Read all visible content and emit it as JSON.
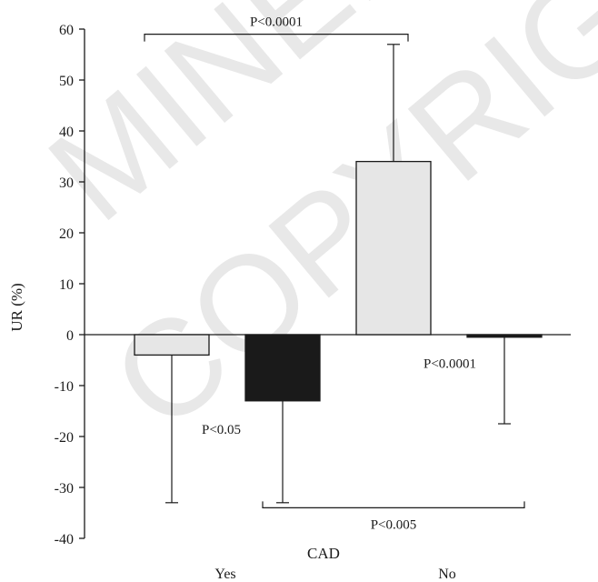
{
  "watermark": {
    "line1": "MINERVA",
    "line2": "COPYRIGHT"
  },
  "chart_data": {
    "type": "bar",
    "ylabel": "UR (%)",
    "xlabel": "CAD",
    "ylim": [
      -40,
      60
    ],
    "yticks": [
      60,
      50,
      40,
      30,
      20,
      10,
      0,
      -10,
      -20,
      -30,
      -40
    ],
    "ytick_labels": [
      "60",
      "50",
      "40",
      "30",
      "20",
      "10",
      "0",
      "-10",
      "-20",
      "-30",
      "-40"
    ],
    "groups": [
      "Yes",
      "No"
    ],
    "bars": [
      {
        "group": "Yes",
        "value": -4,
        "error_low": -33,
        "color": "#e6e6e6"
      },
      {
        "group": "Yes",
        "value": -13,
        "error_low": -33,
        "color": "#1a1a1a"
      },
      {
        "group": "No",
        "value": 34,
        "error_high": 57,
        "color": "#e6e6e6"
      },
      {
        "group": "No",
        "value": -0.5,
        "error_low": -17.5,
        "color": "#1a1a1a"
      }
    ],
    "annotations": [
      {
        "text": "P<0.0001",
        "type": "bracket",
        "from_bar": 0,
        "to_bar": 2,
        "y": 59
      },
      {
        "text": "P<0.005",
        "type": "bracket",
        "from_bar": 1,
        "to_bar": 3,
        "y": -34
      },
      {
        "text": "P<0.05",
        "type": "label"
      },
      {
        "text": "P<0.0001",
        "type": "label"
      }
    ],
    "grid": false,
    "legend": "none"
  }
}
